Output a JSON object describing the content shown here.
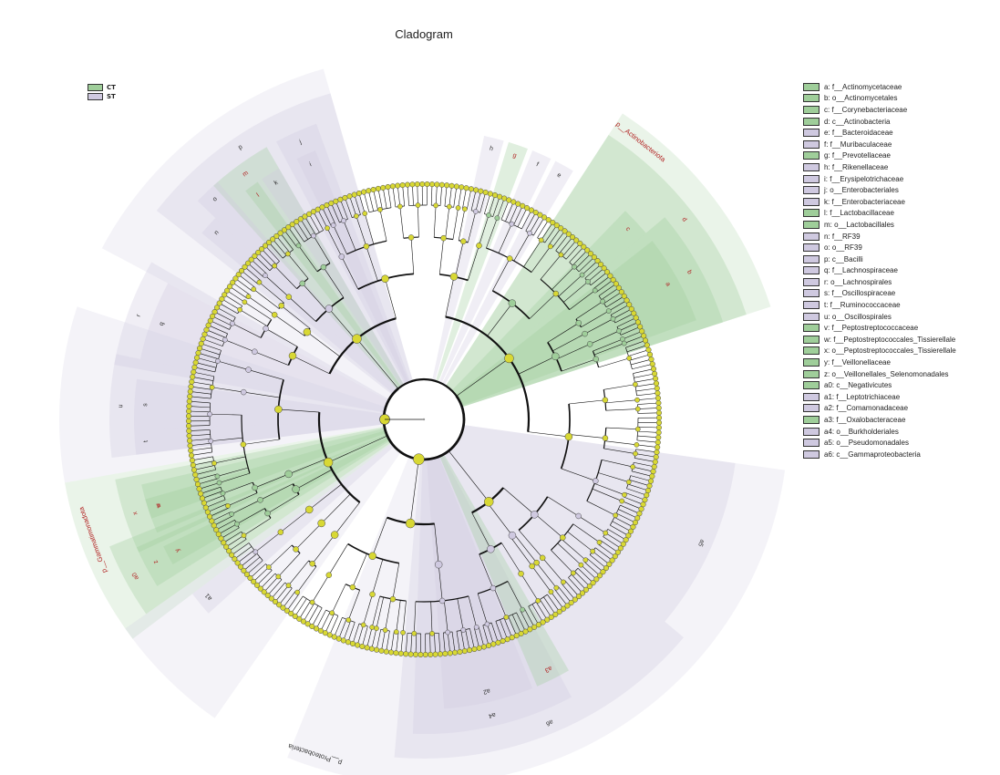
{
  "title": "Cladogram",
  "colors": {
    "CT": "#9fce9a",
    "ST": "#cfc9e0",
    "node": "#d8d834",
    "edge": "#111111",
    "red_label": "#b22222",
    "green_label": "#2e7d32"
  },
  "groups": [
    {
      "key": "CT",
      "label": "CT",
      "color": "#9fce9a"
    },
    {
      "key": "ST",
      "label": "ST",
      "color": "#cfc9e0"
    }
  ],
  "taxa": [
    {
      "code": "a",
      "text": "a: f__Actinomycetaceae",
      "group": "CT"
    },
    {
      "code": "b",
      "text": "b: o__Actinomycetales",
      "group": "CT"
    },
    {
      "code": "c",
      "text": "c: f__Corynebacteriaceae",
      "group": "CT"
    },
    {
      "code": "d",
      "text": "d: c__Actinobacteria",
      "group": "CT"
    },
    {
      "code": "e",
      "text": "e: f__Bacteroidaceae",
      "group": "ST"
    },
    {
      "code": "f",
      "text": "f: f__Muribaculaceae",
      "group": "ST"
    },
    {
      "code": "g",
      "text": "g: f__Prevotellaceae",
      "group": "CT"
    },
    {
      "code": "h",
      "text": "h: f__Rikenellaceae",
      "group": "ST"
    },
    {
      "code": "i",
      "text": "i: f__Erysipelotrichaceae",
      "group": "ST"
    },
    {
      "code": "j",
      "text": "j: o__Enterobacteriales",
      "group": "ST"
    },
    {
      "code": "k",
      "text": "k: f__Enterobacteriaceae",
      "group": "ST"
    },
    {
      "code": "l",
      "text": "l: f__Lactobacillaceae",
      "group": "CT"
    },
    {
      "code": "m",
      "text": "m: o__Lactobacillales",
      "group": "CT"
    },
    {
      "code": "n",
      "text": "n: f__RF39",
      "group": "ST"
    },
    {
      "code": "o",
      "text": "o: o__RF39",
      "group": "ST"
    },
    {
      "code": "p",
      "text": "p: c__Bacilli",
      "group": "ST"
    },
    {
      "code": "q",
      "text": "q: f__Lachnospiraceae",
      "group": "ST"
    },
    {
      "code": "r",
      "text": "r: o__Lachnospirales",
      "group": "ST"
    },
    {
      "code": "s",
      "text": "s: f__Oscillospiraceae",
      "group": "ST"
    },
    {
      "code": "t",
      "text": "t: f__Ruminococcaceae",
      "group": "ST"
    },
    {
      "code": "u",
      "text": "u: o__Oscillospirales",
      "group": "ST"
    },
    {
      "code": "v",
      "text": "v: f__Peptostreptococcaceae",
      "group": "CT"
    },
    {
      "code": "w",
      "text": "w: f__Peptostreptococcales_Tissierellale",
      "group": "CT"
    },
    {
      "code": "x",
      "text": "x: o__Peptostreptococcales_Tissierellale",
      "group": "CT"
    },
    {
      "code": "y",
      "text": "y: f__Veillonellaceae",
      "group": "CT"
    },
    {
      "code": "z",
      "text": "z: o__Veillonellales_Selenomonadales",
      "group": "CT"
    },
    {
      "code": "a0",
      "text": "a0: c__Negativicutes",
      "group": "CT"
    },
    {
      "code": "a1",
      "text": "a1: f__Leptotrichiaceae",
      "group": "ST"
    },
    {
      "code": "a2",
      "text": "a2: f__Comamonadaceae",
      "group": "ST"
    },
    {
      "code": "a3",
      "text": "a3: f__Oxalobacteraceae",
      "group": "CT"
    },
    {
      "code": "a4",
      "text": "a4: o__Burkholderiales",
      "group": "ST"
    },
    {
      "code": "a5",
      "text": "a5: o__Pseudomonadales",
      "group": "ST"
    },
    {
      "code": "a6",
      "text": "a6: c__Gammaproteobacteria",
      "group": "ST"
    }
  ],
  "phylum_labels": [
    {
      "text": "p__Actinobacteriota",
      "group": "CT",
      "angle": -52
    },
    {
      "text": "p__Proteobacteria",
      "group": "ST",
      "angle": 108
    },
    {
      "text": "p__Gammatimonadota",
      "group": "CT",
      "angle": 160
    }
  ],
  "sectors": [
    {
      "code": "d",
      "group": "CT",
      "a0": -57,
      "a1": -18,
      "level": 3
    },
    {
      "code": "b",
      "group": "CT",
      "a0": -40,
      "a1": -18,
      "level": 4
    },
    {
      "code": "a",
      "group": "CT",
      "a0": -38,
      "a1": -20,
      "level": 5
    },
    {
      "code": "c",
      "group": "CT",
      "a0": -46,
      "a1": -40,
      "level": 5
    },
    {
      "code": "e",
      "group": "ST",
      "a0": -63,
      "a1": -59,
      "level": 5
    },
    {
      "code": "f",
      "group": "ST",
      "a0": -68,
      "a1": -64,
      "level": 5
    },
    {
      "code": "g",
      "group": "CT",
      "a0": -73,
      "a1": -69,
      "level": 5
    },
    {
      "code": "h",
      "group": "ST",
      "a0": -78,
      "a1": -74,
      "level": 5
    },
    {
      "code": "p",
      "group": "ST",
      "a0": -142,
      "a1": -106,
      "level": 3
    },
    {
      "code": "j",
      "group": "ST",
      "a0": -118,
      "a1": -110,
      "level": 4
    },
    {
      "code": "m",
      "group": "CT",
      "a0": -132,
      "a1": -120,
      "level": 4
    },
    {
      "code": "i",
      "group": "ST",
      "a0": -116,
      "a1": -112,
      "level": 5
    },
    {
      "code": "k",
      "group": "ST",
      "a0": -124,
      "a1": -120,
      "level": 5
    },
    {
      "code": "l",
      "group": "CT",
      "a0": -128,
      "a1": -125,
      "level": 5
    },
    {
      "code": "o",
      "group": "ST",
      "a0": -136,
      "a1": -131,
      "level": 4
    },
    {
      "code": "n",
      "group": "ST",
      "a0": -140,
      "a1": -136,
      "level": 5
    },
    {
      "code": "r",
      "group": "ST",
      "a0": -170,
      "a1": -150,
      "level": 4
    },
    {
      "code": "q",
      "group": "ST",
      "a0": -168,
      "a1": -152,
      "level": 5
    },
    {
      "code": "u",
      "group": "ST",
      "a0": 173,
      "a1": 192,
      "level": 4
    },
    {
      "code": "s",
      "group": "ST",
      "a0": 178,
      "a1": 188,
      "level": 5
    },
    {
      "code": "t",
      "group": "ST",
      "a0": 173,
      "a1": 178,
      "level": 5
    },
    {
      "code": "x",
      "group": "CT",
      "a0": 155,
      "a1": 169,
      "level": 4
    },
    {
      "code": "w",
      "group": "CT",
      "a0": 157,
      "a1": 167,
      "level": 5
    },
    {
      "code": "v",
      "group": "CT",
      "a0": 160,
      "a1": 164,
      "level": 5
    },
    {
      "code": "a0",
      "group": "CT",
      "a0": 145,
      "a1": 158,
      "level": 3
    },
    {
      "code": "z",
      "group": "CT",
      "a0": 148,
      "a1": 156,
      "level": 4
    },
    {
      "code": "y",
      "group": "CT",
      "a0": 150,
      "a1": 154,
      "level": 5
    },
    {
      "code": "a1",
      "group": "ST",
      "a0": 138,
      "a1": 143,
      "level": 5
    },
    {
      "code": "a6",
      "group": "ST",
      "a0": 40,
      "a1": 95,
      "level": 3
    },
    {
      "code": "a4",
      "group": "ST",
      "a0": 62,
      "a1": 92,
      "level": 4
    },
    {
      "code": "a2",
      "group": "ST",
      "a0": 68,
      "a1": 86,
      "level": 5
    },
    {
      "code": "a3",
      "group": "CT",
      "a0": 60,
      "a1": 67,
      "level": 5
    },
    {
      "code": "a5",
      "group": "ST",
      "a0": 8,
      "a1": 40,
      "level": 4
    }
  ],
  "phylum_sectors": [
    {
      "group": "CT",
      "a0": -57,
      "a1": -18
    },
    {
      "group": "ST",
      "a0": 8,
      "a1": 112
    },
    {
      "group": "ST",
      "a0": -152,
      "a1": -106
    },
    {
      "group": "ST",
      "a0": 170,
      "a1": 198
    },
    {
      "group": "CT",
      "a0": 143,
      "a1": 170
    },
    {
      "group": "ST",
      "a0": 125,
      "a1": 145
    }
  ]
}
